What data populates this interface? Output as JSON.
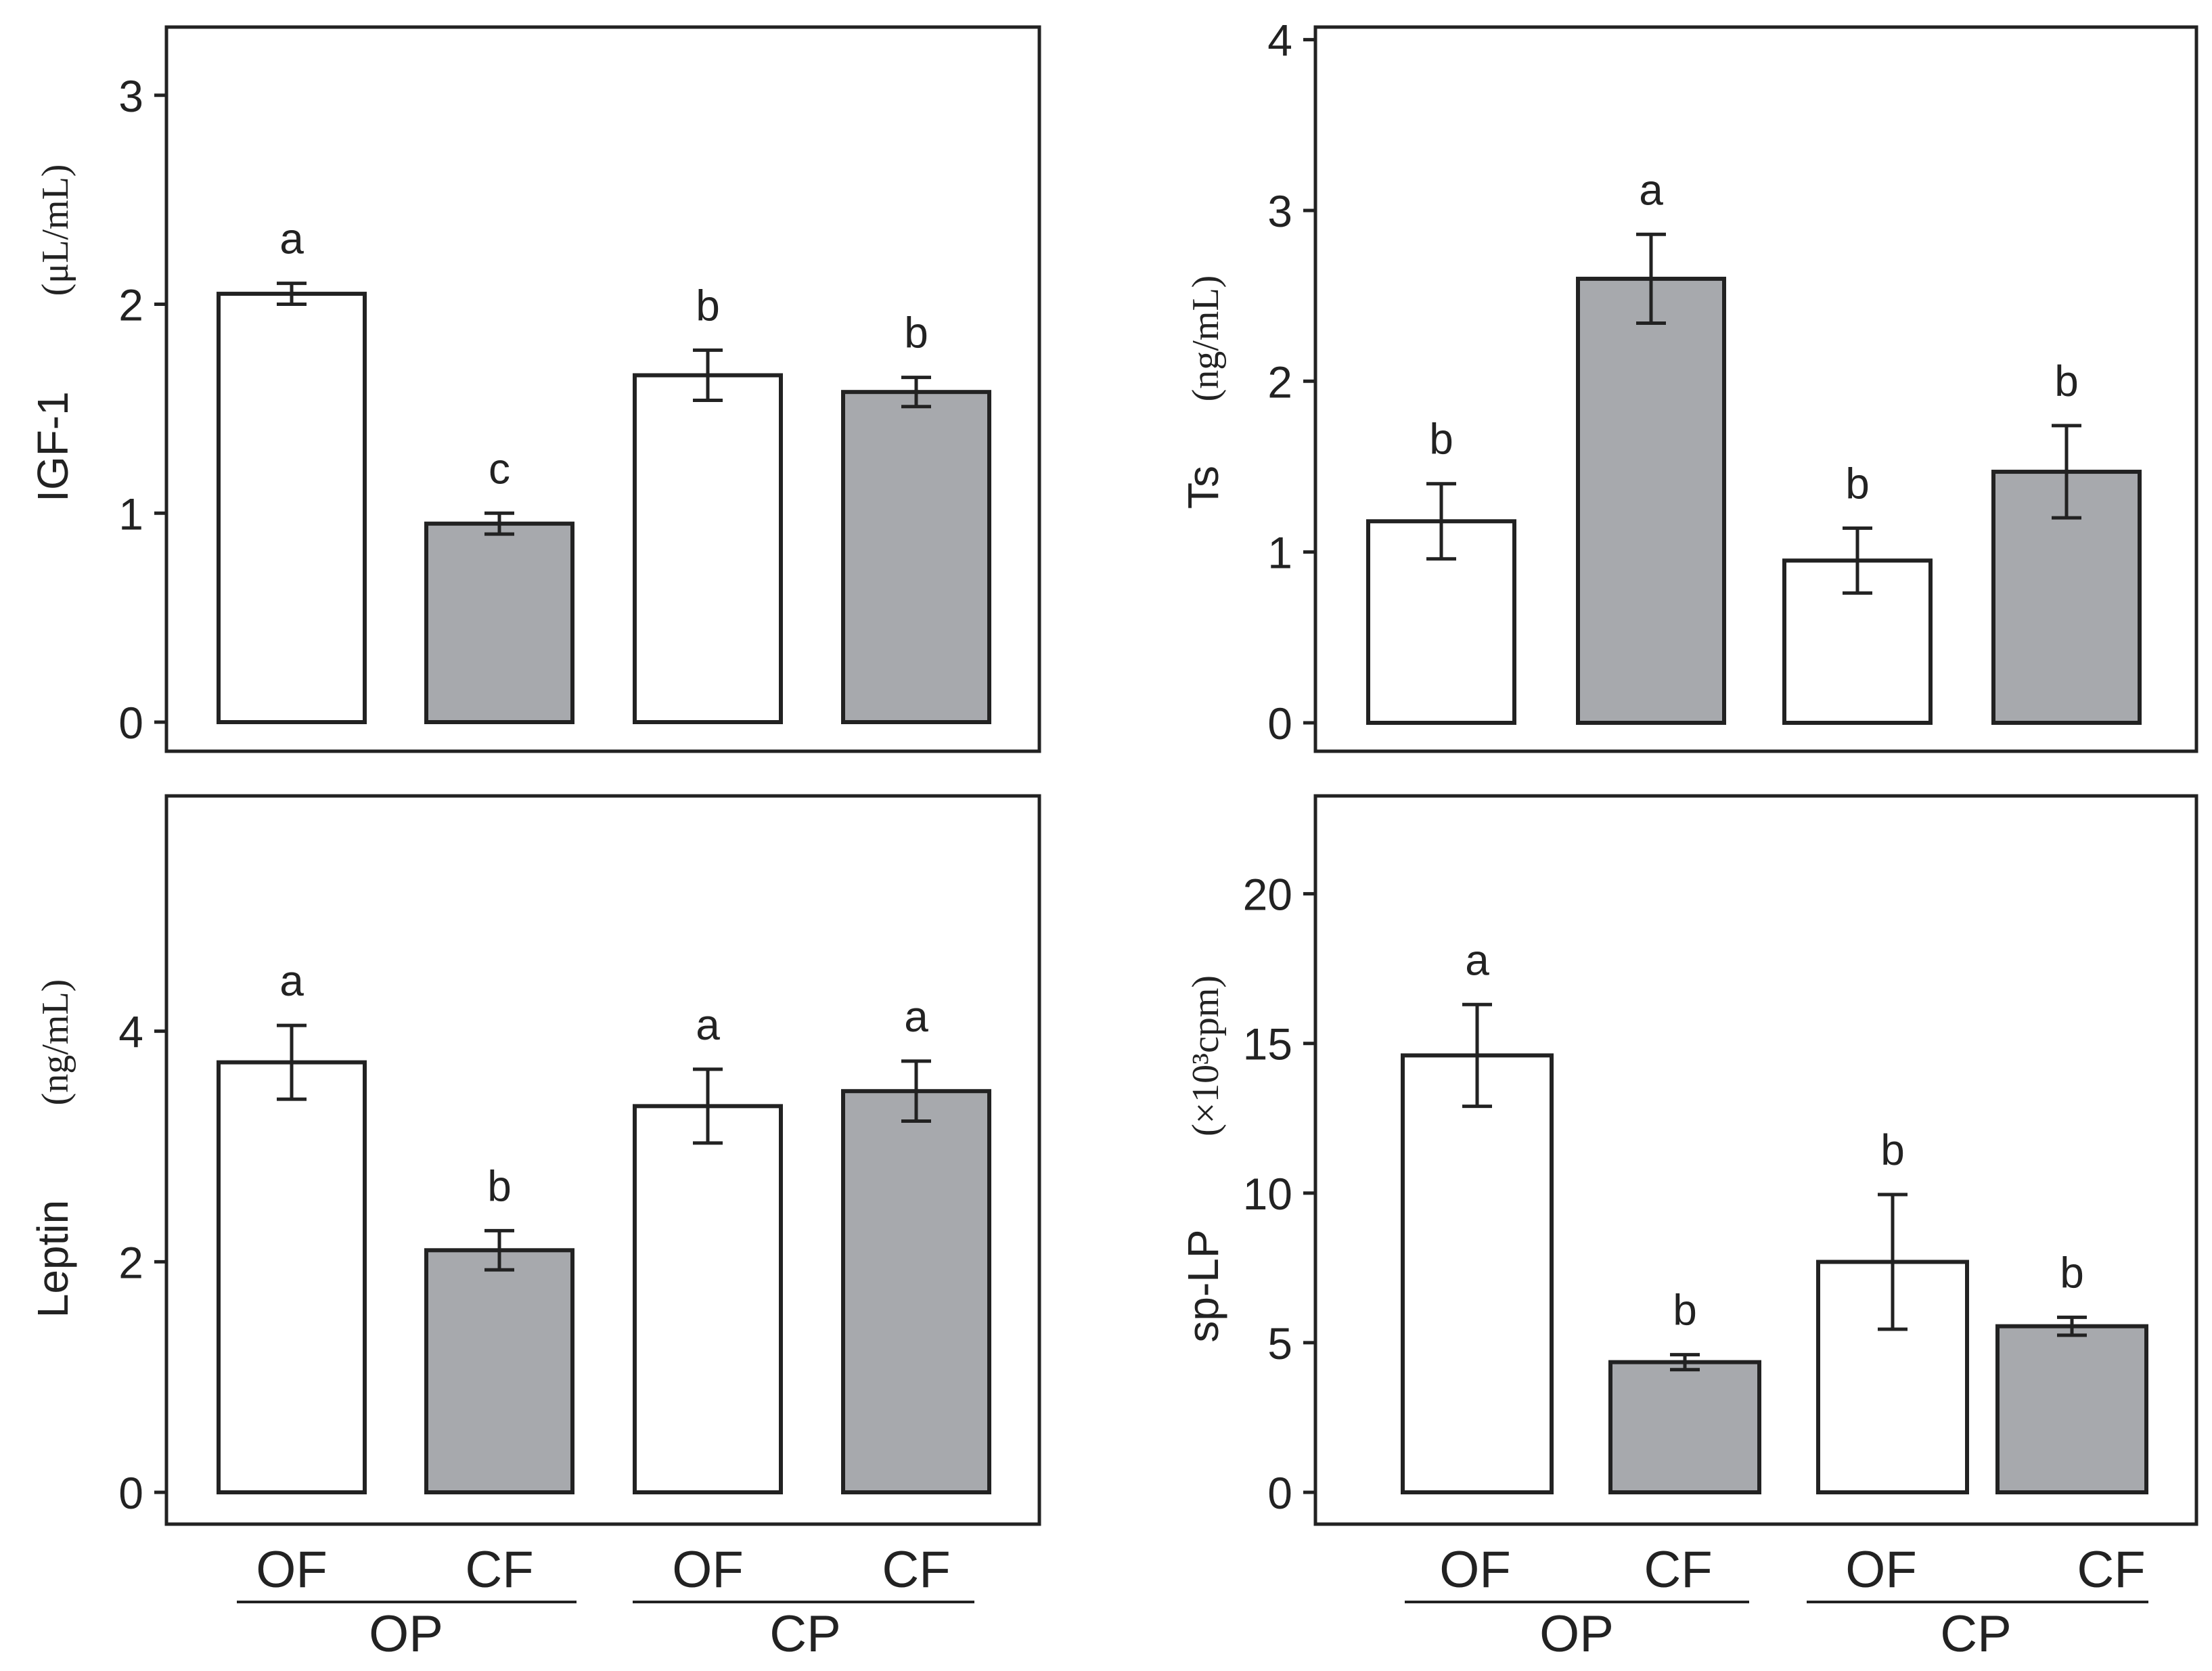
{
  "figure": {
    "group_labels": {
      "feeding": [
        "OF",
        "CF",
        "OF",
        "CF"
      ],
      "parents": [
        "OP",
        "CP"
      ]
    },
    "colors": {
      "fill_of": "#ffffff",
      "fill_cf": "#a7a9ad",
      "stroke": "#222222"
    }
  },
  "chart_data": [
    {
      "type": "bar",
      "id": "igf1",
      "ylabel_main": "IGF-1",
      "ylabel_unit": "(μL/mL)",
      "ylim": [
        0,
        3.2
      ],
      "yticks": [
        0,
        1,
        2,
        3
      ],
      "categories": [
        "OF",
        "CF",
        "OF",
        "CF"
      ],
      "values": [
        2.05,
        0.95,
        1.66,
        1.58
      ],
      "errors": [
        0.05,
        0.05,
        0.12,
        0.07
      ],
      "letters": [
        "a",
        "c",
        "b",
        "b"
      ]
    },
    {
      "type": "bar",
      "id": "ts",
      "ylabel_main": "Ts",
      "ylabel_unit": "(ng/mL)",
      "ylim": [
        0,
        4.05
      ],
      "yticks": [
        0,
        1,
        2,
        3,
        4
      ],
      "categories": [
        "OF",
        "CF",
        "OF",
        "CF"
      ],
      "values": [
        1.18,
        2.6,
        0.95,
        1.47
      ],
      "errors": [
        0.22,
        0.26,
        0.19,
        0.27
      ],
      "letters": [
        "b",
        "a",
        "b",
        "b"
      ]
    },
    {
      "type": "bar",
      "id": "leptin",
      "ylabel_main": "Leptin",
      "ylabel_unit": "(ng/mL)",
      "ylim": [
        0,
        5.9
      ],
      "yticks": [
        0,
        2,
        4
      ],
      "categories": [
        "OF",
        "CF",
        "OF",
        "CF"
      ],
      "values": [
        3.73,
        2.1,
        3.35,
        3.48
      ],
      "errors": [
        0.32,
        0.17,
        0.32,
        0.26
      ],
      "letters": [
        "a",
        "b",
        "a",
        "a"
      ]
    },
    {
      "type": "bar",
      "id": "splp",
      "ylabel_main": "sp-LP",
      "ylabel_unit": "(×10³cpm)",
      "ylim": [
        0,
        23
      ],
      "yticks": [
        0,
        5,
        10,
        15,
        20
      ],
      "categories": [
        "OF",
        "CF",
        "OF",
        "CF"
      ],
      "values": [
        14.6,
        4.35,
        7.7,
        5.55
      ],
      "errors": [
        1.7,
        0.25,
        2.25,
        0.3
      ],
      "letters": [
        "a",
        "b",
        "b",
        "b"
      ]
    }
  ]
}
